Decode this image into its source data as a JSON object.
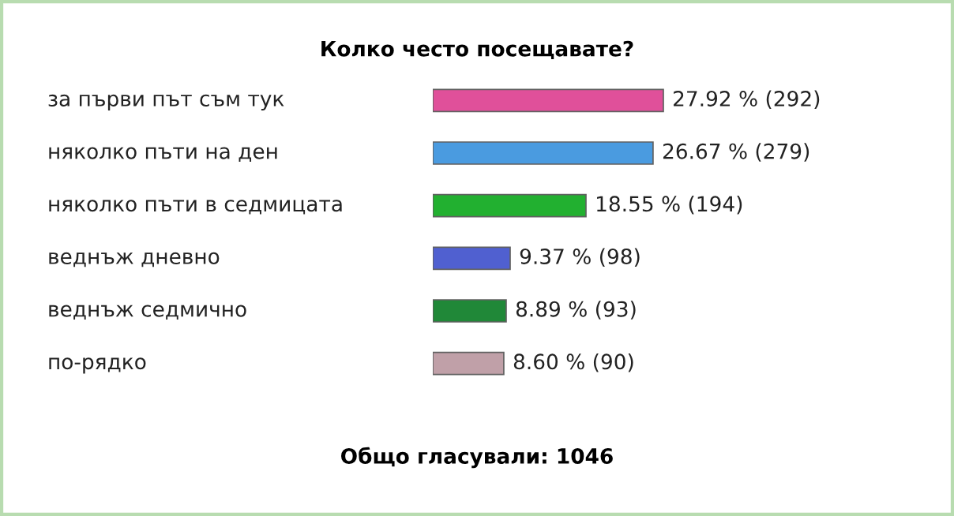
{
  "chart_data": {
    "type": "bar",
    "orientation": "horizontal",
    "title": "Колко често посещавате?",
    "categories": [
      "за първи път съм тук",
      "няколко пъти на ден",
      "няколко пъти в седмицата",
      "веднъж дневно",
      "веднъж седмично",
      "по-рядко"
    ],
    "values": [
      27.92,
      26.67,
      18.55,
      9.37,
      8.89,
      8.6
    ],
    "colors": [
      "#e0509a",
      "#4a9be0",
      "#22b030",
      "#5060d0",
      "#208838",
      "#c0a0a8"
    ],
    "value_labels": [
      "27.92 % (292)",
      "26.67 % (279)",
      "18.55 % (194)",
      "9.37 % (98)",
      "8.89 % (93)",
      "8.60 % (90)"
    ],
    "annotations": [
      "Общо гласували: 1046"
    ],
    "legend": false
  }
}
